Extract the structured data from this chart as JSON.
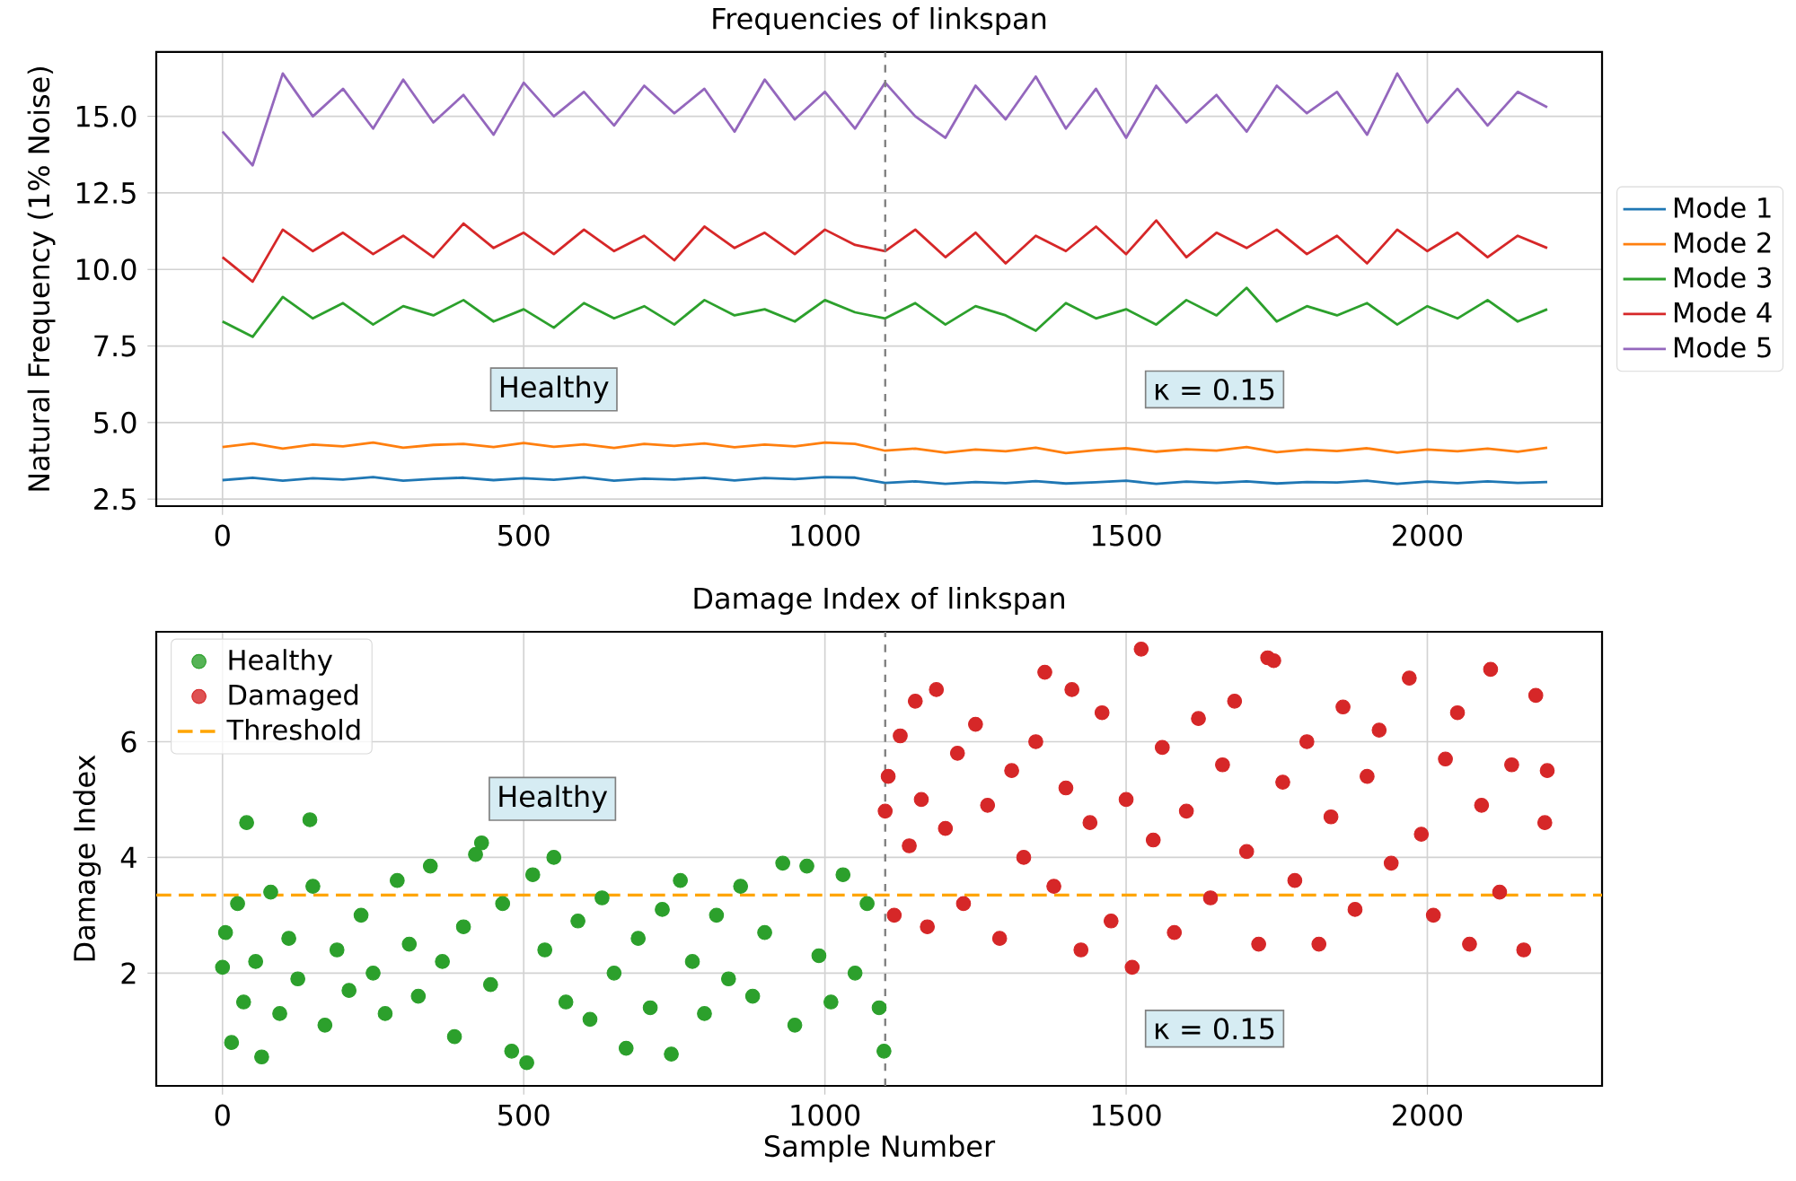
{
  "chart_data": [
    {
      "type": "line",
      "title": "Frequencies of linkspan",
      "ylabel": "Natural Frequency (1% Noise)",
      "x": [
        0,
        50,
        100,
        150,
        200,
        250,
        300,
        350,
        400,
        450,
        500,
        550,
        600,
        650,
        700,
        750,
        800,
        850,
        900,
        950,
        1000,
        1050,
        1100,
        1150,
        1200,
        1250,
        1300,
        1350,
        1400,
        1450,
        1500,
        1550,
        1600,
        1650,
        1700,
        1750,
        1800,
        1850,
        1900,
        1950,
        2000,
        2050,
        2100,
        2150,
        2199
      ],
      "series": [
        {
          "name": "Mode 1",
          "color": "#1f77b4",
          "values": [
            3.12,
            3.2,
            3.1,
            3.18,
            3.14,
            3.22,
            3.1,
            3.16,
            3.2,
            3.12,
            3.18,
            3.13,
            3.21,
            3.1,
            3.17,
            3.14,
            3.2,
            3.11,
            3.19,
            3.15,
            3.22,
            3.2,
            3.03,
            3.08,
            3.0,
            3.06,
            3.02,
            3.09,
            3.01,
            3.05,
            3.1,
            3.0,
            3.07,
            3.03,
            3.08,
            3.01,
            3.06,
            3.04,
            3.1,
            3.0,
            3.07,
            3.02,
            3.08,
            3.03,
            3.06
          ]
        },
        {
          "name": "Mode 2",
          "color": "#ff7f0e",
          "values": [
            4.2,
            4.32,
            4.15,
            4.28,
            4.22,
            4.35,
            4.18,
            4.27,
            4.3,
            4.2,
            4.33,
            4.21,
            4.29,
            4.17,
            4.3,
            4.24,
            4.32,
            4.19,
            4.28,
            4.22,
            4.35,
            4.3,
            4.08,
            4.15,
            4.02,
            4.12,
            4.06,
            4.18,
            4.0,
            4.1,
            4.16,
            4.05,
            4.13,
            4.08,
            4.2,
            4.03,
            4.12,
            4.07,
            4.16,
            4.02,
            4.12,
            4.06,
            4.15,
            4.05,
            4.18
          ]
        },
        {
          "name": "Mode 3",
          "color": "#2ca02c",
          "values": [
            8.3,
            7.8,
            9.1,
            8.4,
            8.9,
            8.2,
            8.8,
            8.5,
            9.0,
            8.3,
            8.7,
            8.1,
            8.9,
            8.4,
            8.8,
            8.2,
            9.0,
            8.5,
            8.7,
            8.3,
            9.0,
            8.6,
            8.4,
            8.9,
            8.2,
            8.8,
            8.5,
            8.0,
            8.9,
            8.4,
            8.7,
            8.2,
            9.0,
            8.5,
            9.4,
            8.3,
            8.8,
            8.5,
            8.9,
            8.2,
            8.8,
            8.4,
            9.0,
            8.3,
            8.7
          ]
        },
        {
          "name": "Mode 4",
          "color": "#d62728",
          "values": [
            10.4,
            9.6,
            11.3,
            10.6,
            11.2,
            10.5,
            11.1,
            10.4,
            11.5,
            10.7,
            11.2,
            10.5,
            11.3,
            10.6,
            11.1,
            10.3,
            11.4,
            10.7,
            11.2,
            10.5,
            11.3,
            10.8,
            10.6,
            11.3,
            10.4,
            11.2,
            10.2,
            11.1,
            10.6,
            11.4,
            10.5,
            11.6,
            10.4,
            11.2,
            10.7,
            11.3,
            10.5,
            11.1,
            10.2,
            11.3,
            10.6,
            11.2,
            10.4,
            11.1,
            10.7
          ]
        },
        {
          "name": "Mode 5",
          "color": "#9467bd",
          "values": [
            14.5,
            13.4,
            16.4,
            15.0,
            15.9,
            14.6,
            16.2,
            14.8,
            15.7,
            14.4,
            16.1,
            15.0,
            15.8,
            14.7,
            16.0,
            15.1,
            15.9,
            14.5,
            16.2,
            14.9,
            15.8,
            14.6,
            16.1,
            15.0,
            14.3,
            16.0,
            14.9,
            16.3,
            14.6,
            15.9,
            14.3,
            16.0,
            14.8,
            15.7,
            14.5,
            16.0,
            15.1,
            15.8,
            14.4,
            16.4,
            14.8,
            15.9,
            14.7,
            15.8,
            15.3
          ]
        }
      ],
      "xlim": [
        -110,
        2290
      ],
      "ylim": [
        2.27,
        17.1
      ],
      "xticks": [
        0,
        500,
        1000,
        1500,
        2000
      ],
      "yticks": [
        2.5,
        {
          "value": 5,
          "label": "5.0"
        },
        7.5,
        {
          "value": 10,
          "label": "10.0"
        },
        12.5,
        {
          "value": 15,
          "label": "15.0"
        }
      ],
      "grid": true,
      "legend": "right",
      "ref_lines": [
        {
          "axis": "x",
          "value": 1100,
          "color": "#808080",
          "line_style": "dashed"
        }
      ],
      "annotations": [
        "Healthy",
        "κ = 0.15"
      ]
    },
    {
      "type": "scatter",
      "title": "Damage Index of linkspan",
      "xlabel": "Sample Number",
      "ylabel": "Damage Index",
      "marker": "circle",
      "series": [
        {
          "name": "Healthy",
          "color": "#2ca02c",
          "x": [
            0,
            5,
            15,
            25,
            35,
            40,
            55,
            65,
            80,
            95,
            110,
            125,
            145,
            150,
            170,
            190,
            210,
            230,
            250,
            270,
            290,
            310,
            325,
            345,
            365,
            385,
            400,
            420,
            430,
            445,
            465,
            480,
            505,
            515,
            535,
            550,
            570,
            590,
            610,
            630,
            650,
            670,
            690,
            710,
            730,
            745,
            760,
            780,
            800,
            820,
            840,
            860,
            880,
            900,
            930,
            950,
            970,
            990,
            1010,
            1030,
            1050,
            1070,
            1090,
            1098
          ],
          "values": [
            2.1,
            2.7,
            0.8,
            3.2,
            1.5,
            4.6,
            2.2,
            0.55,
            3.4,
            1.3,
            2.6,
            1.9,
            4.65,
            3.5,
            1.1,
            2.4,
            1.7,
            3.0,
            2.0,
            1.3,
            3.6,
            2.5,
            1.6,
            3.85,
            2.2,
            0.9,
            2.8,
            4.05,
            4.25,
            1.8,
            3.2,
            0.65,
            0.45,
            3.7,
            2.4,
            4.0,
            1.5,
            2.9,
            1.2,
            3.3,
            2.0,
            0.7,
            2.6,
            1.4,
            3.1,
            0.6,
            3.6,
            2.2,
            1.3,
            3.0,
            1.9,
            3.5,
            1.6,
            2.7,
            3.9,
            1.1,
            3.85,
            2.3,
            1.5,
            3.7,
            2.0,
            3.2,
            1.4,
            0.65
          ]
        },
        {
          "name": "Damaged",
          "color": "#d62728",
          "x": [
            1100,
            1105,
            1115,
            1125,
            1140,
            1150,
            1160,
            1170,
            1185,
            1200,
            1220,
            1230,
            1250,
            1270,
            1290,
            1310,
            1330,
            1350,
            1365,
            1380,
            1400,
            1410,
            1425,
            1440,
            1460,
            1475,
            1500,
            1510,
            1525,
            1545,
            1560,
            1580,
            1600,
            1620,
            1640,
            1660,
            1680,
            1700,
            1720,
            1735,
            1745,
            1760,
            1780,
            1800,
            1820,
            1840,
            1860,
            1880,
            1900,
            1920,
            1940,
            1970,
            1990,
            2010,
            2030,
            2050,
            2070,
            2090,
            2105,
            2120,
            2140,
            2160,
            2180,
            2195,
            2199
          ],
          "values": [
            4.8,
            5.4,
            3.0,
            6.1,
            4.2,
            6.7,
            5.0,
            2.8,
            6.9,
            4.5,
            5.8,
            3.2,
            6.3,
            4.9,
            2.6,
            5.5,
            4.0,
            6.0,
            7.2,
            3.5,
            5.2,
            6.9,
            2.4,
            4.6,
            6.5,
            2.9,
            5.0,
            2.1,
            7.6,
            4.3,
            5.9,
            2.7,
            4.8,
            6.4,
            3.3,
            5.6,
            6.7,
            4.1,
            2.5,
            7.45,
            7.4,
            5.3,
            3.6,
            6.0,
            2.5,
            4.7,
            6.6,
            3.1,
            5.4,
            6.2,
            3.9,
            7.1,
            4.4,
            3.0,
            5.7,
            6.5,
            2.5,
            4.9,
            7.25,
            3.4,
            5.6,
            2.4,
            6.8,
            4.6,
            5.5
          ]
        }
      ],
      "xlim": [
        -110,
        2290
      ],
      "ylim": [
        0.05,
        7.9
      ],
      "xticks": [
        0,
        500,
        1000,
        1500,
        2000
      ],
      "yticks": [
        2,
        4,
        6
      ],
      "grid": true,
      "legend": "top left",
      "ref_lines": [
        {
          "axis": "x",
          "value": 1100,
          "color": "#808080",
          "line_style": "dashed"
        },
        {
          "axis": "y",
          "value": 3.35,
          "label": "Threshold",
          "color": "#ffa500",
          "line_style": "dashed"
        }
      ],
      "annotations": [
        "Healthy",
        "κ = 0.15"
      ]
    }
  ]
}
